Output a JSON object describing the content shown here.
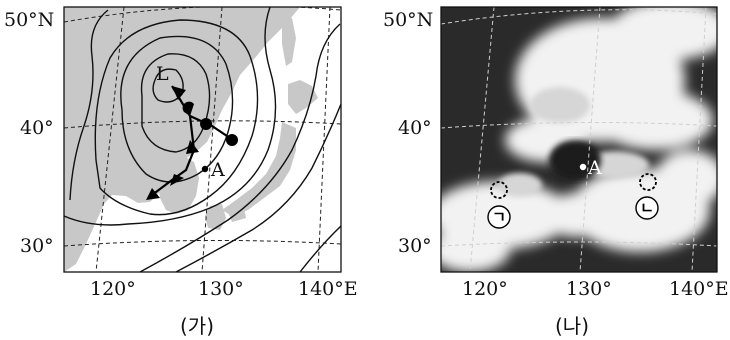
{
  "left_map": {
    "lat_labels": [
      "50°N",
      "40°",
      "30°"
    ],
    "lon_labels": [
      "120°",
      "130°",
      "140°E"
    ],
    "low_label": "L",
    "point_label": "A",
    "caption": "(가)"
  },
  "right_map": {
    "lat_labels": [
      "50°N",
      "40°",
      "30°"
    ],
    "lon_labels": [
      "120°",
      "130°",
      "140°E"
    ],
    "point_label": "A",
    "marker_1": "ㄱ",
    "marker_2": "ㄴ",
    "caption": "(나)"
  },
  "colors": {
    "land": "#c8c8c8",
    "sea": "#ffffff",
    "satellite_dark": "#2a2a2a",
    "cloud": "#f2f2f2"
  }
}
